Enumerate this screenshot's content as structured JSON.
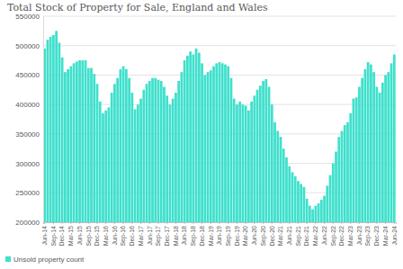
{
  "chart_data": {
    "type": "bar",
    "title": "Total Stock of Property for Sale, England and Wales",
    "categories": [
      "Jun-14",
      null,
      null,
      "Sep-14",
      null,
      null,
      "Dec-14",
      null,
      null,
      "Mar-15",
      null,
      null,
      "Jun-15",
      null,
      null,
      "Sep-15",
      null,
      null,
      "Dec-15",
      null,
      null,
      "Mar-16",
      null,
      null,
      "Jun-16",
      null,
      null,
      "Sep-16",
      null,
      null,
      "Dec-16",
      null,
      null,
      "Mar-17",
      null,
      null,
      "Jun-17",
      null,
      null,
      "Sep-17",
      null,
      null,
      "Dec-17",
      null,
      null,
      "Mar-18",
      null,
      null,
      "Jun-18",
      null,
      null,
      "Sep-18",
      null,
      null,
      "Dec-18",
      null,
      null,
      "Mar-19",
      null,
      null,
      "Jun-19",
      null,
      null,
      "Sep-19",
      null,
      null,
      "Dec-19",
      null,
      null,
      "Mar-20",
      null,
      null,
      "Jun-20",
      null,
      null,
      "Sep-20",
      null,
      null,
      "Dec-20",
      null,
      null,
      "Mar-21",
      null,
      null,
      "Jun-21",
      null,
      null,
      "Sep-21",
      null,
      null,
      "Dec-21",
      null,
      null,
      "Mar-22",
      null,
      null,
      "Jun-22",
      null,
      null,
      "Sep-22",
      null,
      null,
      "Dec-22",
      null,
      null,
      "Mar-23",
      null,
      null,
      "Jun-23",
      null,
      null,
      "Sep-23",
      null,
      null,
      "Dec-23",
      null,
      null,
      "Mar-24",
      null,
      null,
      "Jun-24"
    ],
    "series": [
      {
        "name": "Unsold property count",
        "color": "#3fe0cc",
        "values": [
          495000,
          510000,
          515000,
          518000,
          525000,
          505000,
          480000,
          455000,
          460000,
          465000,
          470000,
          473000,
          475000,
          475000,
          475000,
          462000,
          462000,
          452000,
          435000,
          405000,
          385000,
          390000,
          395000,
          420000,
          435000,
          445000,
          460000,
          465000,
          460000,
          445000,
          420000,
          392000,
          400000,
          410000,
          425000,
          435000,
          440000,
          445000,
          445000,
          442000,
          440000,
          430000,
          415000,
          400000,
          410000,
          420000,
          440000,
          455000,
          475000,
          483000,
          490000,
          485000,
          495000,
          488000,
          470000,
          450000,
          455000,
          458000,
          465000,
          470000,
          472000,
          470000,
          468000,
          465000,
          445000,
          410000,
          400000,
          405000,
          400000,
          398000,
          390000,
          405000,
          415000,
          425000,
          432000,
          440000,
          443000,
          430000,
          400000,
          370000,
          355000,
          345000,
          325000,
          310000,
          295000,
          285000,
          278000,
          270000,
          265000,
          260000,
          240000,
          228000,
          222000,
          228000,
          232000,
          238000,
          245000,
          262000,
          280000,
          300000,
          320000,
          345000,
          355000,
          365000,
          370000,
          385000,
          410000,
          412000,
          430000,
          445000,
          460000,
          472000,
          468000,
          455000,
          430000,
          420000,
          437000,
          450000,
          455000,
          470000,
          485000
        ]
      }
    ],
    "ylim": [
      200000,
      550000
    ],
    "yticks": [
      200000,
      250000,
      300000,
      350000,
      400000,
      450000,
      500000,
      550000
    ],
    "grid": true,
    "legend": "bottom-left"
  }
}
